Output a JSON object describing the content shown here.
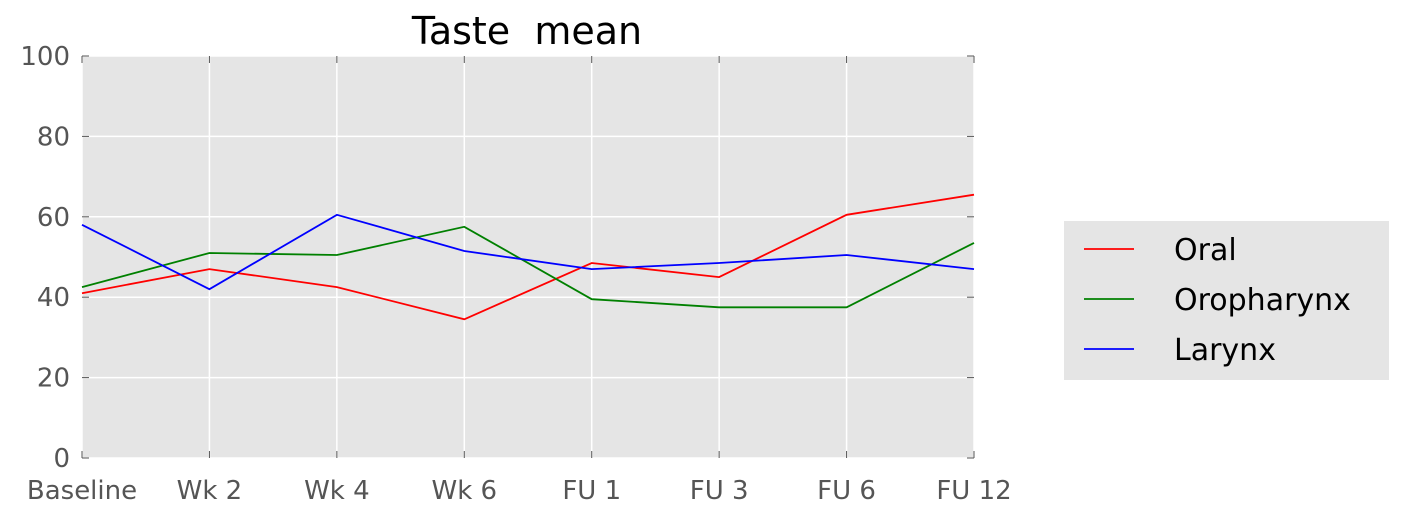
{
  "chart_data": {
    "type": "line",
    "title": "Taste  mean",
    "xlabel": "",
    "ylabel": "",
    "categories": [
      "Baseline",
      "Wk 2",
      "Wk 4",
      "Wk 6",
      "FU 1",
      "FU 3",
      "FU 6",
      "FU 12"
    ],
    "ylim": [
      0,
      100
    ],
    "yticks": [
      0,
      20,
      40,
      60,
      80,
      100
    ],
    "grid": true,
    "legend_position": "right",
    "series": [
      {
        "name": "Oral",
        "color": "#ff0000",
        "values": [
          41.0,
          47.0,
          42.5,
          34.5,
          48.5,
          45.0,
          60.5,
          65.5
        ]
      },
      {
        "name": "Oropharynx",
        "color": "#008000",
        "values": [
          42.5,
          51.0,
          50.5,
          57.5,
          39.5,
          37.5,
          37.5,
          53.5
        ]
      },
      {
        "name": "Larynx",
        "color": "#0000ff",
        "values": [
          58.0,
          42.0,
          60.5,
          51.5,
          47.0,
          48.5,
          50.5,
          47.0
        ]
      }
    ]
  }
}
